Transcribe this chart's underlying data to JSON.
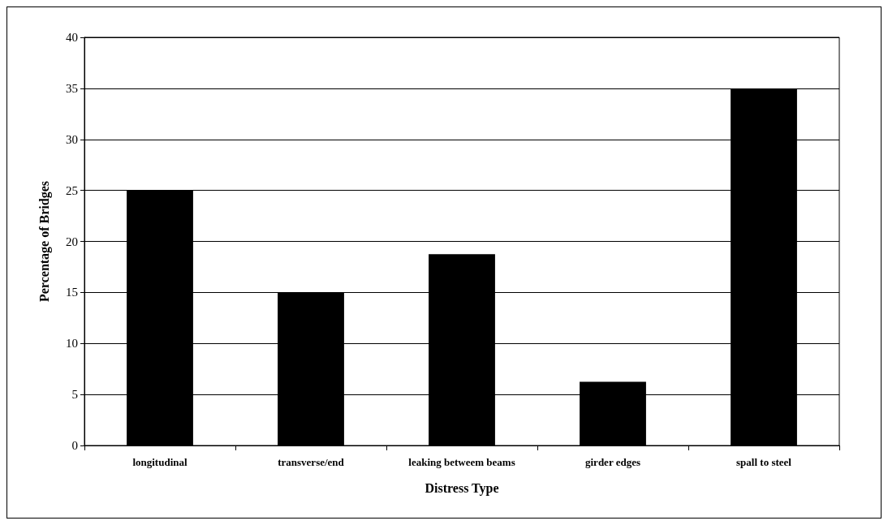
{
  "chart_data": {
    "type": "bar",
    "xlabel": "Distress Type",
    "ylabel": "Percentage of Bridges",
    "categories": [
      "longitudinal",
      "transverse/end",
      "leaking betweem beams",
      "girder edges",
      "spall to steel"
    ],
    "values": [
      25,
      15,
      18.75,
      6.25,
      35
    ],
    "color": "#000000",
    "ylim": [
      0,
      40
    ],
    "yticks": [
      0,
      5,
      10,
      15,
      20,
      25,
      30,
      35,
      40
    ],
    "grid": "y"
  }
}
